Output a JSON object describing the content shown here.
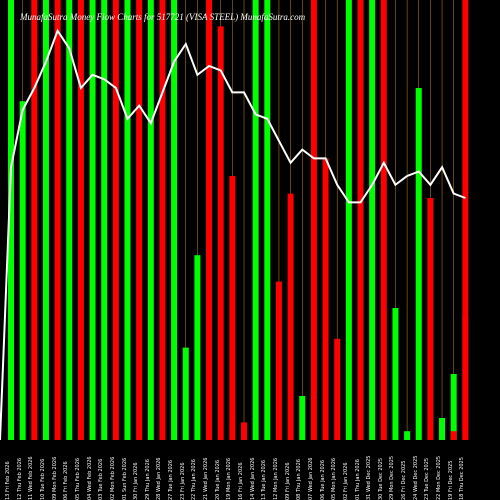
{
  "chart_data": {
    "type": "bar",
    "title": "MunafaSutra Money Flow Charts for 517721 (VISA STEEL) MunafaSutra.com",
    "ylim": [
      0,
      100
    ],
    "grid": "vertical",
    "categories": [
      "13 Fri Feb 2026",
      "12 Thu Feb 2026",
      "11 Wed Feb 2026",
      "10 Tue Feb 2026",
      "09 Mon Feb 2026",
      "06 Fri Feb 2026",
      "05 Thu Feb 2026",
      "04 Wed Feb 2026",
      "03 Tue Feb 2026",
      "02 Mon Feb 2026",
      "01 Sun Feb 2026",
      "30 Fri Jan 2026",
      "29 Thu Jan 2026",
      "28 Wed Jan 2026",
      "27 Tue Jan 2026",
      "23 Fri Jan 2026",
      "22 Thu Jan 2026",
      "21 Wed Jan 2026",
      "20 Tue Jan 2026",
      "19 Mon Jan 2026",
      "16 Fri Jan 2026",
      "14 Wed Jan 2026",
      "13 Tue Jan 2026",
      "12 Mon Jan 2026",
      "09 Fri Jan 2026",
      "08 Thu Jan 2026",
      "07 Wed Jan 2026",
      "06 Tue Jan 2026",
      "05 Mon Jan 2026",
      "02 Fri Jan 2026",
      "01 Thu Jan 2026",
      "31 Wed Dec 2025",
      "30 Tue Dec 2025",
      "29 Mon Dec 2025",
      "26 Fri Dec 2025",
      "24 Wed Dec 2025",
      "23 Tue Dec 2025",
      "22 Mon Dec 2025",
      "19 Fri Dec 2025",
      "18 Thu Dec 2025"
    ],
    "bars": {
      "values": [
        100,
        77,
        100,
        100,
        100,
        100,
        100,
        100,
        100,
        100,
        100,
        100,
        100,
        100,
        100,
        21,
        42,
        100,
        94,
        60,
        4,
        100,
        100,
        36,
        56,
        10,
        100,
        64,
        23,
        100,
        100,
        100,
        100,
        30,
        2,
        80,
        55,
        5,
        15,
        100
      ],
      "colors": [
        "green",
        "green",
        "red",
        "green",
        "red",
        "green",
        "red",
        "green",
        "green",
        "red",
        "green",
        "red",
        "green",
        "red",
        "green",
        "green",
        "green",
        "red",
        "red",
        "red",
        "red",
        "green",
        "green",
        "red",
        "red",
        "green",
        "red",
        "red",
        "red",
        "green",
        "red",
        "green",
        "red",
        "green",
        "green",
        "green",
        "red",
        "green",
        "green",
        "red"
      ]
    },
    "line": {
      "values": [
        62,
        75,
        80,
        86,
        93,
        89,
        80,
        83,
        82,
        80,
        73,
        76,
        72,
        79,
        86,
        90,
        83,
        85,
        84,
        79,
        79,
        74,
        73,
        68,
        63,
        66,
        64,
        64,
        58,
        54,
        54,
        58,
        63,
        58,
        60,
        61,
        58,
        62,
        56,
        55
      ],
      "color": "white"
    },
    "more_bars": {
      "values": [
        0,
        0,
        0,
        0,
        0,
        0,
        0,
        0,
        0,
        0,
        0,
        0,
        0,
        0,
        0,
        0,
        0,
        0,
        0,
        0,
        0,
        0,
        0,
        0,
        0,
        0,
        0,
        0,
        0,
        0,
        0,
        0,
        0,
        0,
        0,
        0,
        0,
        0,
        2,
        28
      ],
      "colors": [
        "green",
        "green",
        "red",
        "green",
        "red",
        "green",
        "red",
        "green",
        "green",
        "red",
        "green",
        "red",
        "green",
        "red",
        "green",
        "green",
        "green",
        "red",
        "red",
        "red",
        "red",
        "green",
        "green",
        "red",
        "red",
        "green",
        "red",
        "red",
        "red",
        "green",
        "red",
        "green",
        "red",
        "green",
        "green",
        "green",
        "red",
        "green",
        "red",
        "red"
      ]
    },
    "colors": {
      "green": "#00ff00",
      "red": "#ff0000",
      "line": "#ffffff",
      "grid": "#d28c00",
      "background": "#000000"
    }
  }
}
